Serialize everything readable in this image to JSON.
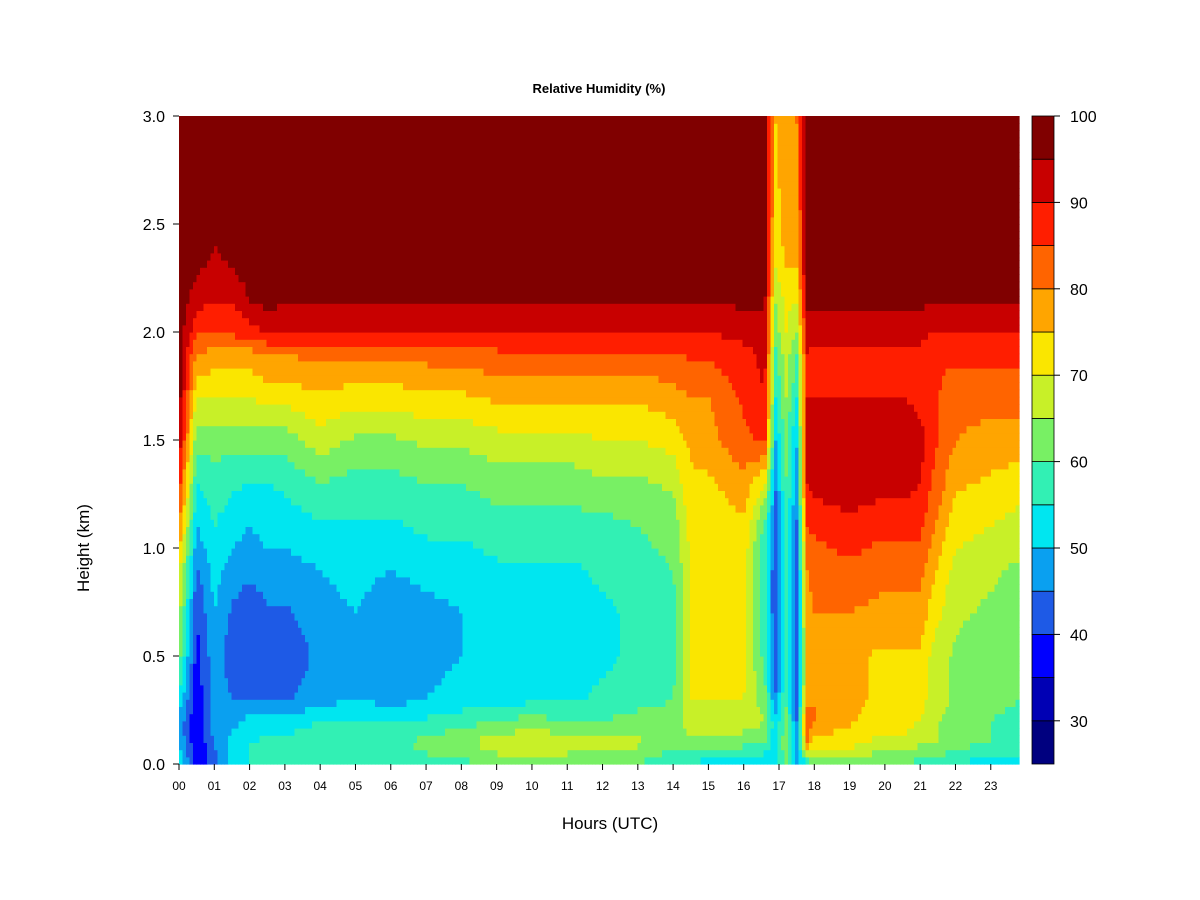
{
  "chart_data": {
    "type": "heatmap",
    "title": "Relative Humidity (%)",
    "xlabel": "Hours (UTC)",
    "ylabel": "Height (km)",
    "xlim": [
      0,
      23.8
    ],
    "ylim": [
      0.0,
      3.0
    ],
    "x_ticks": [
      "00",
      "01",
      "02",
      "03",
      "04",
      "05",
      "06",
      "07",
      "08",
      "09",
      "10",
      "11",
      "12",
      "13",
      "14",
      "15",
      "16",
      "17",
      "18",
      "19",
      "20",
      "21",
      "22",
      "23"
    ],
    "y_ticks": [
      "0.0",
      "0.5",
      "1.0",
      "1.5",
      "2.0",
      "2.5",
      "3.0"
    ],
    "colorbar": {
      "levels": [
        25,
        30,
        35,
        40,
        45,
        50,
        55,
        60,
        65,
        70,
        75,
        80,
        85,
        90,
        95,
        100
      ],
      "tick_labels": [
        "30",
        "40",
        "50",
        "60",
        "70",
        "80",
        "90",
        "100"
      ],
      "colors": [
        "#00007F",
        "#0000B4",
        "#0000FF",
        "#1E5AE6",
        "#0AA0F0",
        "#00E6F0",
        "#32F0B4",
        "#78F064",
        "#C8F028",
        "#FAE600",
        "#FFA500",
        "#FF6400",
        "#FF1E00",
        "#C80000",
        "#800000"
      ]
    },
    "heights_km": [
      0.0,
      0.1,
      0.2,
      0.3,
      0.5,
      0.7,
      0.9,
      1.1,
      1.3,
      1.5,
      1.7,
      1.9,
      2.0,
      2.15,
      2.3,
      2.5,
      3.0
    ],
    "hours_utc": [
      0,
      0.5,
      1.0,
      1.5,
      2.0,
      2.5,
      3.0,
      4.0,
      5.0,
      6.0,
      7.0,
      8.0,
      9.0,
      10.0,
      11.0,
      12.0,
      13.0,
      14.0,
      14.5,
      15.0,
      16.0,
      16.6,
      16.9,
      17.2,
      17.5,
      17.8,
      18.0,
      19.0,
      20.0,
      20.6,
      21.0,
      21.4,
      22.0,
      23.0,
      23.8
    ],
    "rh_percent": [
      [
        55,
        50,
        48,
        55,
        62,
        67,
        72,
        80,
        88,
        95,
        98,
        98,
        98,
        98,
        98,
        98,
        98
      ],
      [
        38,
        35,
        35,
        36,
        38,
        40,
        44,
        50,
        55,
        62,
        70,
        80,
        86,
        92,
        96,
        97,
        98
      ],
      [
        42,
        45,
        48,
        48,
        48,
        50,
        52,
        55,
        58,
        62,
        70,
        78,
        85,
        90,
        94,
        96,
        98
      ],
      [
        52,
        52,
        48,
        45,
        42,
        44,
        48,
        52,
        56,
        62,
        70,
        78,
        86,
        90,
        95,
        98,
        98
      ],
      [
        55,
        55,
        52,
        44,
        40,
        42,
        46,
        50,
        55,
        62,
        70,
        78,
        88,
        95,
        98,
        98,
        98
      ],
      [
        55,
        56,
        52,
        44,
        42,
        44,
        48,
        52,
        55,
        62,
        72,
        80,
        90,
        97,
        98,
        98,
        98
      ],
      [
        55,
        56,
        52,
        44,
        42,
        44,
        48,
        52,
        56,
        62,
        72,
        80,
        90,
        96,
        98,
        98,
        98
      ],
      [
        58,
        60,
        55,
        48,
        46,
        48,
        50,
        54,
        60,
        68,
        74,
        82,
        90,
        96,
        98,
        98,
        98
      ],
      [
        58,
        60,
        56,
        50,
        48,
        50,
        52,
        54,
        58,
        64,
        72,
        82,
        90,
        96,
        98,
        98,
        98
      ],
      [
        56,
        58,
        55,
        48,
        45,
        46,
        50,
        54,
        58,
        64,
        72,
        82,
        90,
        96,
        98,
        98,
        98
      ],
      [
        58,
        62,
        56,
        50,
        48,
        48,
        52,
        56,
        60,
        66,
        74,
        82,
        90,
        96,
        98,
        98,
        98
      ],
      [
        58,
        64,
        58,
        52,
        50,
        50,
        52,
        56,
        60,
        66,
        74,
        82,
        90,
        96,
        98,
        98,
        98
      ],
      [
        62,
        68,
        60,
        52,
        52,
        52,
        54,
        58,
        62,
        68,
        76,
        84,
        90,
        96,
        98,
        98,
        98
      ],
      [
        62,
        70,
        62,
        54,
        52,
        52,
        54,
        58,
        62,
        68,
        76,
        84,
        90,
        96,
        98,
        98,
        98
      ],
      [
        62,
        68,
        60,
        54,
        52,
        52,
        54,
        58,
        62,
        68,
        76,
        84,
        90,
        96,
        98,
        98,
        98
      ],
      [
        60,
        66,
        60,
        56,
        54,
        54,
        56,
        58,
        64,
        70,
        76,
        84,
        90,
        96,
        98,
        98,
        98
      ],
      [
        60,
        66,
        62,
        58,
        56,
        56,
        58,
        60,
        64,
        70,
        76,
        84,
        90,
        96,
        98,
        98,
        98
      ],
      [
        55,
        62,
        62,
        60,
        58,
        58,
        60,
        62,
        66,
        72,
        78,
        84,
        90,
        96,
        98,
        98,
        98
      ],
      [
        55,
        64,
        68,
        70,
        70,
        70,
        70,
        72,
        74,
        76,
        80,
        86,
        90,
        96,
        98,
        98,
        98
      ],
      [
        52,
        62,
        68,
        70,
        70,
        70,
        70,
        72,
        74,
        78,
        80,
        86,
        90,
        96,
        98,
        98,
        98
      ],
      [
        50,
        62,
        68,
        70,
        72,
        72,
        72,
        74,
        78,
        84,
        86,
        88,
        92,
        96,
        98,
        98,
        98
      ],
      [
        50,
        60,
        65,
        62,
        58,
        56,
        56,
        58,
        70,
        86,
        90,
        92,
        94,
        96,
        98,
        98,
        98
      ],
      [
        55,
        50,
        52,
        45,
        42,
        40,
        40,
        42,
        45,
        50,
        55,
        58,
        62,
        65,
        70,
        72,
        75
      ],
      [
        60,
        65,
        62,
        60,
        58,
        56,
        56,
        58,
        60,
        62,
        65,
        68,
        70,
        72,
        75,
        78,
        80
      ],
      [
        45,
        48,
        45,
        40,
        40,
        40,
        42,
        44,
        48,
        50,
        55,
        60,
        65,
        70,
        75,
        78,
        80
      ],
      [
        55,
        80,
        85,
        78,
        76,
        78,
        80,
        85,
        90,
        92,
        90,
        90,
        92,
        96,
        98,
        98,
        98
      ],
      [
        60,
        72,
        80,
        80,
        78,
        80,
        82,
        86,
        92,
        94,
        90,
        88,
        92,
        96,
        98,
        98,
        98
      ],
      [
        62,
        72,
        76,
        76,
        76,
        80,
        84,
        88,
        94,
        94,
        90,
        88,
        92,
        96,
        98,
        98,
        98
      ],
      [
        60,
        68,
        72,
        74,
        74,
        78,
        82,
        86,
        92,
        94,
        90,
        88,
        92,
        96,
        98,
        98,
        98
      ],
      [
        60,
        68,
        72,
        72,
        74,
        78,
        82,
        86,
        92,
        94,
        90,
        88,
        92,
        96,
        98,
        98,
        98
      ],
      [
        58,
        66,
        70,
        72,
        74,
        78,
        82,
        86,
        90,
        92,
        88,
        88,
        92,
        96,
        98,
        98,
        98
      ],
      [
        58,
        66,
        66,
        68,
        68,
        72,
        76,
        80,
        84,
        86,
        86,
        86,
        90,
        96,
        98,
        98,
        98
      ],
      [
        55,
        62,
        62,
        64,
        64,
        66,
        68,
        72,
        76,
        80,
        82,
        86,
        90,
        96,
        98,
        98,
        98
      ],
      [
        52,
        60,
        60,
        62,
        62,
        64,
        66,
        70,
        74,
        78,
        82,
        86,
        90,
        96,
        98,
        98,
        98
      ],
      [
        52,
        58,
        58,
        60,
        60,
        62,
        64,
        68,
        72,
        78,
        82,
        86,
        90,
        96,
        98,
        98,
        98
      ]
    ]
  }
}
